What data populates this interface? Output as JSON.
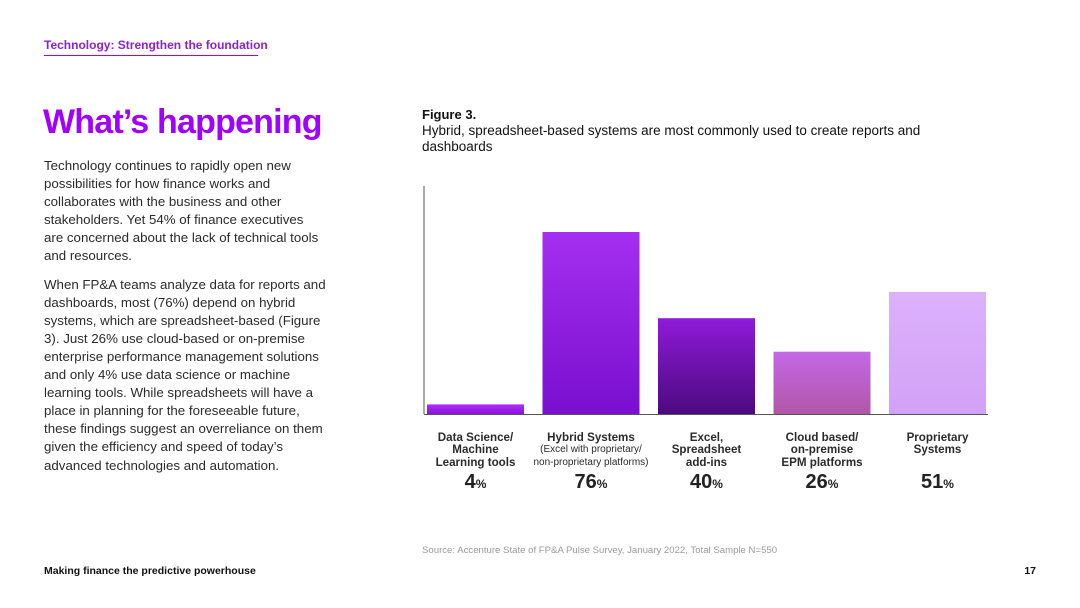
{
  "header": {
    "section_tag": "Technology: Strengthen the foundation"
  },
  "main": {
    "headline": "What’s happening",
    "paragraphs": [
      "Technology continues to rapidly open new possibilities for how finance works and collaborates with the business and other stakeholders. Yet 54% of finance executives are concerned about the lack of technical tools and resources.",
      "When FP&A teams analyze data for reports and dashboards, most (76%) depend on hybrid systems, which are spreadsheet-based (Figure 3). Just 26% use cloud-based or on-premise enterprise performance management solutions and only 4% use data science or machine learning tools. While spreadsheets will have a place in planning for the foreseeable future, these findings suggest an overreliance on them given the efficiency and speed of today’s advanced technologies and automation."
    ]
  },
  "figure": {
    "label": "Figure 3.",
    "caption": "Hybrid, spreadsheet-based systems are most commonly used to create reports and dashboards",
    "source": "Source: Accenture State of FP&A Pulse Survey, January 2022, Total Sample N=550"
  },
  "chart_data": {
    "type": "bar",
    "title": "Hybrid, spreadsheet-based systems are most commonly used to create reports and dashboards",
    "categories": [
      "Data Science/ Machine Learning tools",
      "Hybrid Systems (Excel with proprietary/ non-proprietary platforms)",
      "Excel, Spreadsheet add-ins",
      "Cloud based/ on-premise EPM platforms",
      "Proprietary Systems"
    ],
    "category_labels": [
      {
        "main": "Data Science/\nMachine\nLearning tools",
        "sub": ""
      },
      {
        "main": "Hybrid Systems",
        "sub": "(Excel with proprietary/\nnon-proprietary platforms)"
      },
      {
        "main": "Excel,\nSpreadsheet\nadd-ins",
        "sub": ""
      },
      {
        "main": "Cloud based/\non-premise\nEPM platforms",
        "sub": ""
      },
      {
        "main": "Proprietary\nSystems",
        "sub": ""
      }
    ],
    "values": [
      4,
      76,
      40,
      26,
      51
    ],
    "value_unit": "%",
    "ylim": [
      0,
      80
    ],
    "grid": false,
    "colors": [
      [
        "#b02cf5",
        "#8a12e0"
      ],
      [
        "#a52ff0",
        "#7a0fcf"
      ],
      [
        "#8f1ad9",
        "#4c0a7f"
      ],
      [
        "#c468e6",
        "#b057a8"
      ],
      [
        "#dcb1fa",
        "#d2a1f7"
      ]
    ]
  },
  "footer": {
    "title": "Making finance the predictive powerhouse",
    "page_number": "17"
  }
}
